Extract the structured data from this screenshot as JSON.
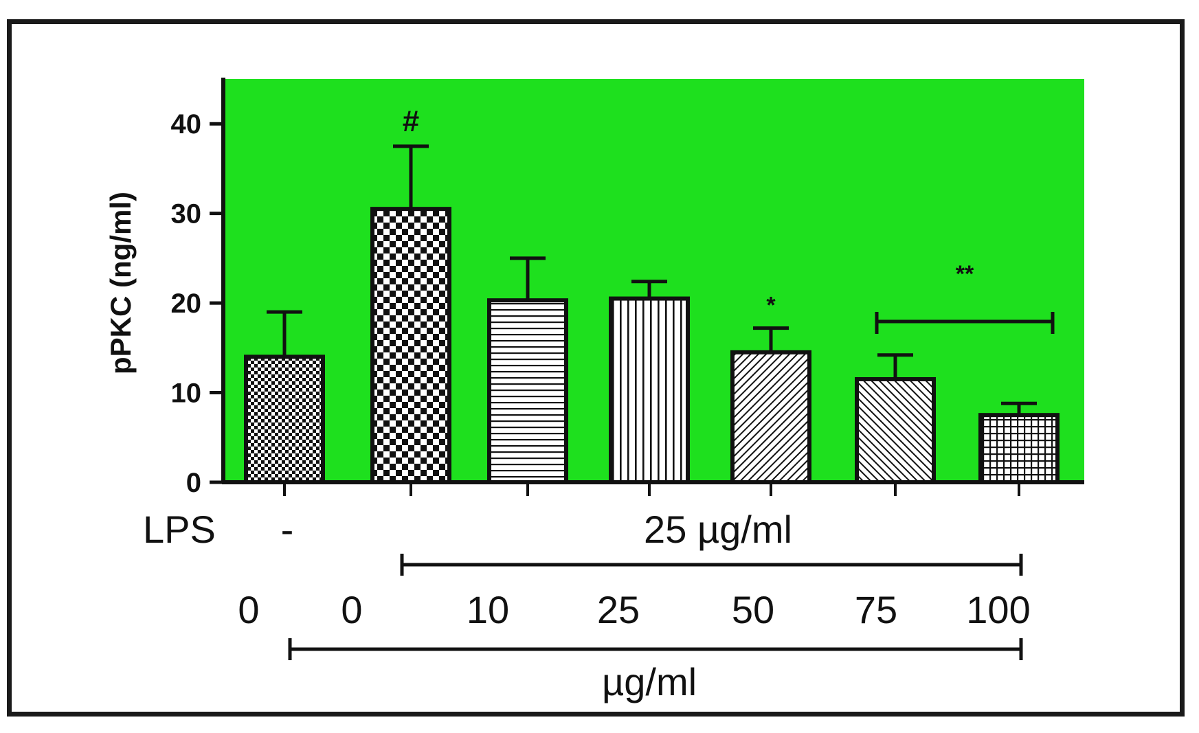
{
  "chart_data": {
    "type": "bar",
    "ylabel": "pPKC (ng/ml)",
    "ylim": [
      0,
      45
    ],
    "yticks": [
      0,
      10,
      20,
      30,
      40
    ],
    "grid": false,
    "background_color": "#1ee01e",
    "bars": [
      {
        "value": 14,
        "error": 5,
        "pattern": "checker-small",
        "annotation": ""
      },
      {
        "value": 30.5,
        "error": 7,
        "pattern": "checker-large",
        "annotation": "#"
      },
      {
        "value": 20.3,
        "error": 4.7,
        "pattern": "horizontal",
        "annotation": ""
      },
      {
        "value": 20.5,
        "error": 1.9,
        "pattern": "vertical",
        "annotation": ""
      },
      {
        "value": 14.5,
        "error": 2.7,
        "pattern": "diag-right",
        "annotation": "*"
      },
      {
        "value": 11.5,
        "error": 2.7,
        "pattern": "diag-left",
        "annotation": ""
      },
      {
        "value": 7.5,
        "error": 1.3,
        "pattern": "grid",
        "annotation": ""
      }
    ],
    "bracket_annotation": "**",
    "lps_label": "LPS",
    "lps_values": [
      "-",
      "25 µg/ml"
    ],
    "dose_labels": [
      "0",
      "0",
      "10",
      "25",
      "50",
      "75",
      "100"
    ],
    "dose_unit": "µg/ml"
  }
}
